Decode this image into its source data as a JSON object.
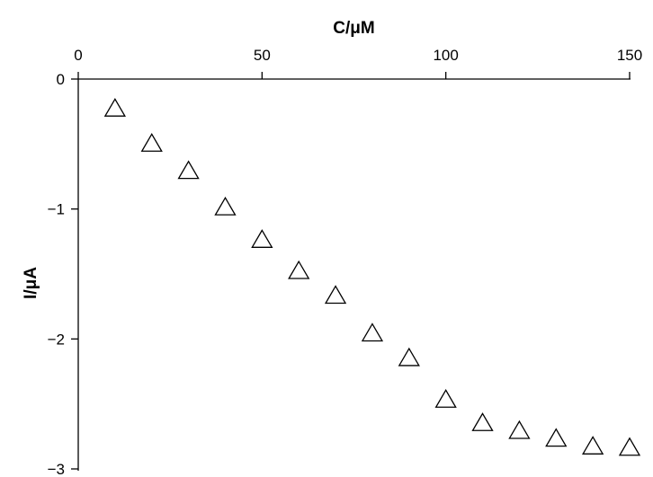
{
  "chart_data": {
    "type": "scatter",
    "xlabel": "C/μM",
    "ylabel": "I/μA",
    "xlim": [
      0,
      150
    ],
    "ylim": [
      -3,
      0
    ],
    "x_ticks": [
      "0",
      "50",
      "100",
      "150"
    ],
    "x_tick_values": [
      0,
      50,
      100,
      150
    ],
    "y_ticks": [
      "0",
      "−1",
      "−2",
      "−3"
    ],
    "y_tick_values": [
      0,
      -1,
      -2,
      -3
    ],
    "x_axis_position": "top",
    "grid": false,
    "marker": "open-triangle",
    "series": [
      {
        "x": [
          10,
          20,
          30,
          40,
          50,
          60,
          70,
          80,
          90,
          100,
          110,
          120,
          130,
          140,
          150
        ],
        "y": [
          -0.23,
          -0.5,
          -0.71,
          -0.99,
          -1.24,
          -1.48,
          -1.67,
          -1.96,
          -2.15,
          -2.47,
          -2.65,
          -2.71,
          -2.77,
          -2.83,
          -2.84
        ]
      }
    ]
  }
}
